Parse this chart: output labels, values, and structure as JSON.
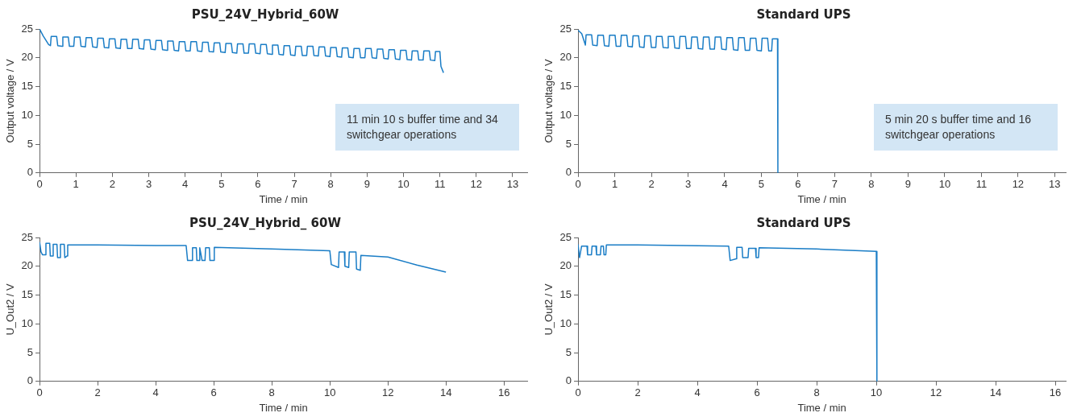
{
  "chart_data": [
    {
      "type": "line",
      "title": "PSU_24V_Hybrid_60W",
      "xlabel": "Time / min",
      "ylabel": "Output voltage / V",
      "color": "#1a7dc6",
      "xlim": [
        0,
        13.4
      ],
      "ylim": [
        0,
        25
      ],
      "xticks": [
        0,
        1,
        2,
        3,
        4,
        5,
        6,
        7,
        8,
        9,
        10,
        11,
        12,
        13
      ],
      "yticks": [
        0,
        5,
        10,
        15,
        20,
        25
      ],
      "grid": false,
      "legend": false,
      "marker": "none",
      "annotations": [
        "11 min 10 s buffer time and 34 switchgear operations"
      ],
      "x": [
        0,
        0.1,
        0.25,
        0.3,
        0.32,
        0.47,
        0.5,
        0.62,
        0.64,
        0.79,
        0.82,
        0.94,
        0.96,
        1.11,
        1.14,
        1.26,
        1.28,
        1.43,
        1.46,
        1.58,
        1.6,
        1.75,
        1.78,
        1.9,
        1.92,
        2.07,
        2.1,
        2.22,
        2.24,
        2.39,
        2.42,
        2.54,
        2.56,
        2.71,
        2.74,
        2.86,
        2.88,
        3.03,
        3.06,
        3.18,
        3.2,
        3.35,
        3.38,
        3.5,
        3.52,
        3.67,
        3.7,
        3.82,
        3.84,
        3.99,
        4.02,
        4.14,
        4.16,
        4.31,
        4.34,
        4.46,
        4.48,
        4.63,
        4.66,
        4.78,
        4.8,
        4.95,
        4.98,
        5.1,
        5.12,
        5.27,
        5.3,
        5.42,
        5.44,
        5.59,
        5.62,
        5.74,
        5.76,
        5.91,
        5.94,
        6.06,
        6.08,
        6.23,
        6.26,
        6.38,
        6.4,
        6.55,
        6.58,
        6.7,
        6.72,
        6.87,
        6.9,
        7.02,
        7.04,
        7.19,
        7.22,
        7.34,
        7.36,
        7.51,
        7.54,
        7.66,
        7.68,
        7.83,
        7.86,
        7.98,
        8.0,
        8.15,
        8.18,
        8.3,
        8.32,
        8.47,
        8.5,
        8.62,
        8.64,
        8.79,
        8.82,
        8.94,
        8.96,
        9.11,
        9.14,
        9.26,
        9.28,
        9.43,
        9.46,
        9.58,
        9.6,
        9.75,
        9.78,
        9.9,
        9.92,
        10.07,
        10.1,
        10.22,
        10.24,
        10.39,
        10.42,
        10.54,
        10.56,
        10.71,
        10.74,
        10.86,
        10.88,
        11.0,
        11.03,
        11.1
      ],
      "values": [
        25,
        23.8,
        22.3,
        22.1,
        23.7,
        23.7,
        22.1,
        22.0,
        23.6,
        23.6,
        22.0,
        22.0,
        23.6,
        23.6,
        22.0,
        21.9,
        23.5,
        23.5,
        21.9,
        21.8,
        23.4,
        23.4,
        21.8,
        21.7,
        23.3,
        23.3,
        21.7,
        21.6,
        23.2,
        23.2,
        21.6,
        21.6,
        23.2,
        23.2,
        21.6,
        21.5,
        23.1,
        23.1,
        21.5,
        21.4,
        23.0,
        23.0,
        21.4,
        21.3,
        22.9,
        22.9,
        21.3,
        21.2,
        22.8,
        22.8,
        21.2,
        21.2,
        22.8,
        22.8,
        21.2,
        21.1,
        22.7,
        22.7,
        21.1,
        21.0,
        22.6,
        22.6,
        21.0,
        20.9,
        22.5,
        22.5,
        20.9,
        20.8,
        22.4,
        22.4,
        20.8,
        20.8,
        22.4,
        22.4,
        20.8,
        20.7,
        22.3,
        22.3,
        20.7,
        20.6,
        22.2,
        22.2,
        20.6,
        20.5,
        22.1,
        22.1,
        20.5,
        20.4,
        22.0,
        22.0,
        20.4,
        20.4,
        22.0,
        22.0,
        20.4,
        20.3,
        21.9,
        21.9,
        20.3,
        20.2,
        21.8,
        21.8,
        20.2,
        20.1,
        21.7,
        21.7,
        20.1,
        20.0,
        21.6,
        21.6,
        20.0,
        20.0,
        21.6,
        21.6,
        20.0,
        19.9,
        21.5,
        21.5,
        19.9,
        19.8,
        21.4,
        21.4,
        19.8,
        19.7,
        21.3,
        21.3,
        19.7,
        19.6,
        21.2,
        21.2,
        19.6,
        19.6,
        21.2,
        21.2,
        19.6,
        19.5,
        21.1,
        21.1,
        18.5,
        17.4
      ]
    },
    {
      "type": "line",
      "title": "Standard UPS",
      "xlabel": "Time / min",
      "ylabel": "Output voltage / V",
      "color": "#1a7dc6",
      "xlim": [
        0,
        13.3
      ],
      "ylim": [
        0,
        25
      ],
      "xticks": [
        0,
        1,
        2,
        3,
        4,
        5,
        6,
        7,
        8,
        9,
        10,
        11,
        12,
        13
      ],
      "yticks": [
        0,
        5,
        10,
        15,
        20,
        25
      ],
      "grid": false,
      "legend": false,
      "marker": "none",
      "annotations": [
        "5 min 20 s buffer time and 16 switchgear operations"
      ],
      "x": [
        0,
        0.1,
        0.2,
        0.22,
        0.37,
        0.4,
        0.52,
        0.54,
        0.69,
        0.72,
        0.84,
        0.86,
        1.01,
        1.04,
        1.16,
        1.18,
        1.33,
        1.36,
        1.48,
        1.5,
        1.65,
        1.68,
        1.8,
        1.82,
        1.97,
        2.0,
        2.12,
        2.14,
        2.29,
        2.32,
        2.44,
        2.46,
        2.61,
        2.64,
        2.76,
        2.78,
        2.93,
        2.96,
        3.08,
        3.1,
        3.25,
        3.28,
        3.4,
        3.42,
        3.57,
        3.6,
        3.72,
        3.74,
        3.89,
        3.92,
        4.04,
        4.06,
        4.21,
        4.24,
        4.36,
        4.38,
        4.53,
        4.56,
        4.68,
        4.7,
        4.85,
        4.88,
        5.0,
        5.02,
        5.17,
        5.2,
        5.28,
        5.3,
        5.44,
        5.45
      ],
      "values": [
        24.8,
        24.2,
        22.2,
        24.0,
        24.0,
        22.2,
        22.1,
        23.9,
        23.9,
        22.1,
        22.0,
        23.9,
        23.9,
        22.0,
        22.0,
        23.9,
        23.9,
        22.0,
        21.9,
        23.8,
        23.8,
        21.9,
        21.8,
        23.8,
        23.8,
        21.8,
        21.8,
        23.7,
        23.7,
        21.8,
        21.7,
        23.7,
        23.7,
        21.7,
        21.6,
        23.7,
        23.7,
        21.6,
        21.6,
        23.6,
        23.6,
        21.6,
        21.5,
        23.6,
        23.6,
        21.5,
        21.5,
        23.6,
        23.6,
        21.5,
        21.4,
        23.5,
        23.5,
        21.4,
        21.3,
        23.5,
        23.5,
        21.3,
        21.3,
        23.4,
        23.4,
        21.3,
        21.2,
        23.4,
        23.4,
        21.2,
        21.2,
        23.3,
        23.3,
        0
      ]
    },
    {
      "type": "line",
      "title": "PSU_24V_Hybrid_ 60W",
      "xlabel": "Time / min",
      "ylabel": "U_Out2 / V",
      "color": "#1a7dc6",
      "xlim": [
        0,
        16.8
      ],
      "ylim": [
        0,
        25
      ],
      "xticks": [
        0,
        2,
        4,
        6,
        8,
        10,
        12,
        14,
        16
      ],
      "yticks": [
        0,
        5,
        10,
        15,
        20,
        25
      ],
      "grid": false,
      "legend": false,
      "marker": "none",
      "x": [
        0,
        0.05,
        0.1,
        0.2,
        0.22,
        0.35,
        0.37,
        0.45,
        0.47,
        0.6,
        0.62,
        0.7,
        0.72,
        0.85,
        0.87,
        0.95,
        0.97,
        2,
        4,
        5.05,
        5.1,
        5.25,
        5.27,
        5.4,
        5.42,
        5.5,
        5.52,
        5.6,
        5.7,
        5.72,
        5.85,
        5.87,
        6.0,
        6.02,
        8,
        10,
        10.05,
        10.3,
        10.32,
        10.5,
        10.52,
        10.65,
        10.67,
        10.9,
        10.92,
        11.05,
        11.07,
        12,
        13,
        14
      ],
      "values": [
        24.2,
        22.5,
        22,
        22,
        24,
        24,
        21.8,
        21.8,
        23.8,
        23.8,
        21.5,
        21.5,
        23.8,
        23.8,
        21.5,
        21.8,
        23.7,
        23.7,
        23.6,
        23.6,
        21,
        21,
        23.2,
        23.2,
        21,
        21,
        23.2,
        21,
        21,
        23.2,
        23.2,
        21,
        21,
        23.3,
        23,
        22.7,
        20.3,
        19.8,
        22.5,
        22.5,
        20,
        19.8,
        22.5,
        22.5,
        19.5,
        19.3,
        21.9,
        21.6,
        20.2,
        19
      ]
    },
    {
      "type": "line",
      "title": "Standard UPS",
      "xlabel": "Time / min",
      "ylabel": "U_Out2 / V",
      "color": "#1a7dc6",
      "xlim": [
        0,
        16.35
      ],
      "ylim": [
        0,
        25
      ],
      "xticks": [
        0,
        2,
        4,
        6,
        8,
        10,
        12,
        14,
        16
      ],
      "yticks": [
        0,
        5,
        10,
        15,
        20,
        25
      ],
      "grid": false,
      "legend": false,
      "marker": "none",
      "x": [
        0,
        0.05,
        0.12,
        0.3,
        0.32,
        0.45,
        0.47,
        0.6,
        0.62,
        0.75,
        0.77,
        0.85,
        0.87,
        0.93,
        0.95,
        2,
        5.05,
        5.1,
        5.3,
        5.32,
        5.5,
        5.52,
        5.7,
        5.72,
        5.95,
        5.97,
        6.05,
        6.07,
        8,
        10,
        10.02
      ],
      "values": [
        23.8,
        21.5,
        23.5,
        23.5,
        22,
        22,
        23.5,
        23.5,
        22,
        22,
        23.5,
        23.5,
        22,
        22,
        23.7,
        23.7,
        23.5,
        21,
        21.3,
        23.3,
        23.3,
        21.5,
        21.5,
        23.1,
        23.1,
        21.5,
        21.5,
        23.2,
        23,
        22.6,
        0
      ]
    }
  ]
}
